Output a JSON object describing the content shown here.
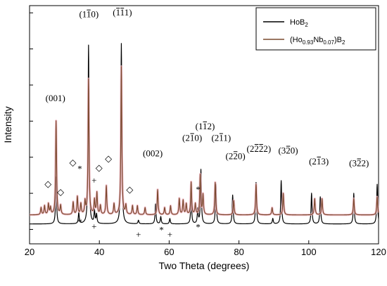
{
  "chart_data": {
    "type": "line",
    "xlabel": "Two Theta (degrees)",
    "ylabel": "Intensity",
    "xlim": [
      20,
      120
    ],
    "xticks": [
      "20",
      "40",
      "60",
      "80",
      "100",
      "120"
    ],
    "grid": false,
    "legend_position": "top-right",
    "series": [
      {
        "name": "HoB2",
        "legend_main": "HoB",
        "legend_sub": "2",
        "color": "#000000",
        "baseline": 0.03,
        "peaks": [
          [
            27.6,
            0.26
          ],
          [
            34.1,
            0.06
          ],
          [
            36.9,
            0.99
          ],
          [
            38.6,
            0.07
          ],
          [
            39.2,
            0.05
          ],
          [
            46.3,
            1.0
          ],
          [
            51.2,
            0.02
          ],
          [
            56.1,
            0.11
          ],
          [
            57.6,
            0.04
          ],
          [
            60.2,
            0.03
          ],
          [
            66.3,
            0.16
          ],
          [
            68.2,
            0.08
          ],
          [
            69.1,
            0.3
          ],
          [
            73.4,
            0.22
          ],
          [
            78.2,
            0.16
          ],
          [
            84.9,
            0.23
          ],
          [
            89.7,
            0.03
          ],
          [
            92.1,
            0.24
          ],
          [
            100.8,
            0.17
          ],
          [
            103.3,
            0.15
          ],
          [
            112.9,
            0.17
          ],
          [
            119.6,
            0.22
          ]
        ]
      },
      {
        "name": "(Ho0.93Nb0.07)B2",
        "legend_parts": [
          [
            "(Ho",
            false
          ],
          [
            "0.93",
            true
          ],
          [
            "Nb",
            false
          ],
          [
            "0.07",
            true
          ],
          [
            ")B",
            false
          ],
          [
            "2",
            true
          ]
        ],
        "color": "#7a4a2e",
        "baseline": 0.08,
        "peaks": [
          [
            23.3,
            0.04
          ],
          [
            24.3,
            0.05
          ],
          [
            25.4,
            0.06
          ],
          [
            26.0,
            0.04
          ],
          [
            27.6,
            0.52
          ],
          [
            28.9,
            0.05
          ],
          [
            32.5,
            0.07
          ],
          [
            33.7,
            0.1
          ],
          [
            34.7,
            0.06
          ],
          [
            35.9,
            0.07
          ],
          [
            36.9,
            0.75
          ],
          [
            38.6,
            0.08
          ],
          [
            39.3,
            0.12
          ],
          [
            40.3,
            0.05
          ],
          [
            42.0,
            0.16
          ],
          [
            44.2,
            0.06
          ],
          [
            46.3,
            0.82
          ],
          [
            47.6,
            0.05
          ],
          [
            49.5,
            0.05
          ],
          [
            50.9,
            0.05
          ],
          [
            53.1,
            0.04
          ],
          [
            56.7,
            0.14
          ],
          [
            58.7,
            0.04
          ],
          [
            60.4,
            0.05
          ],
          [
            62.9,
            0.09
          ],
          [
            64.0,
            0.08
          ],
          [
            64.9,
            0.06
          ],
          [
            66.3,
            0.18
          ],
          [
            67.5,
            0.06
          ],
          [
            68.9,
            0.22
          ],
          [
            69.7,
            0.11
          ],
          [
            73.2,
            0.18
          ],
          [
            78.5,
            0.08
          ],
          [
            84.9,
            0.17
          ],
          [
            89.5,
            0.04
          ],
          [
            92.7,
            0.12
          ],
          [
            101.7,
            0.09
          ],
          [
            103.8,
            0.09
          ],
          [
            112.9,
            0.09
          ],
          [
            119.6,
            0.1
          ]
        ]
      }
    ],
    "annotations": [
      {
        "label": "(001)",
        "parts": [
          [
            "(001)",
            false
          ]
        ],
        "x": 27.4,
        "y": 0.71
      },
      {
        "label": "(1-10)",
        "parts": [
          [
            "(1",
            false
          ],
          [
            "1",
            true
          ],
          [
            "0)",
            false
          ]
        ],
        "x": 37.0,
        "y": 1.175
      },
      {
        "label": "(1-11)",
        "parts": [
          [
            "(",
            false
          ],
          [
            "1",
            true
          ],
          [
            "1",
            true
          ],
          [
            "1)",
            false
          ]
        ],
        "x": 46.6,
        "y": 1.185
      },
      {
        "label": "(002)",
        "parts": [
          [
            "(002)",
            false
          ]
        ],
        "x": 55.3,
        "y": 0.405
      },
      {
        "label": "(2-10)",
        "parts": [
          [
            "(2",
            false
          ],
          [
            "1",
            true
          ],
          [
            "0)",
            false
          ]
        ],
        "x": 66.6,
        "y": 0.49
      },
      {
        "label": "(1-12)",
        "parts": [
          [
            "(1",
            false
          ],
          [
            "1",
            true
          ],
          [
            "2)",
            false
          ]
        ],
        "x": 70.3,
        "y": 0.555
      },
      {
        "label": "(2-11)",
        "parts": [
          [
            "(2",
            false
          ],
          [
            "1",
            true
          ],
          [
            "1)",
            false
          ]
        ],
        "x": 74.9,
        "y": 0.49
      },
      {
        "label": "(2-20)",
        "parts": [
          [
            "(2",
            false
          ],
          [
            "2",
            true
          ],
          [
            "0)",
            false
          ]
        ],
        "x": 79.0,
        "y": 0.39
      },
      {
        "label": "(2-2-2)",
        "parts": [
          [
            "(2",
            false
          ],
          [
            "2",
            true
          ],
          [
            "2",
            true
          ],
          [
            "2)",
            false
          ]
        ],
        "x": 85.7,
        "y": 0.43
      },
      {
        "label": "(3-20)",
        "parts": [
          [
            "(3",
            false
          ],
          [
            "2",
            true
          ],
          [
            "0)",
            false
          ]
        ],
        "x": 94.1,
        "y": 0.42
      },
      {
        "label": "(2-13)",
        "parts": [
          [
            "(2",
            false
          ],
          [
            "1",
            true
          ],
          [
            "3)",
            false
          ]
        ],
        "x": 102.9,
        "y": 0.36
      },
      {
        "label": "(3-22)",
        "parts": [
          [
            "(3",
            false
          ],
          [
            "2",
            true
          ],
          [
            "2)",
            false
          ]
        ],
        "x": 114.4,
        "y": 0.35
      }
    ],
    "markers": [
      {
        "symbol": "◇",
        "x": 25.3,
        "y": 0.235
      },
      {
        "symbol": "◇",
        "x": 28.9,
        "y": 0.19
      },
      {
        "symbol": "◇",
        "x": 32.4,
        "y": 0.355
      },
      {
        "symbol": "*",
        "x": 34.4,
        "y": 0.32
      },
      {
        "symbol": "+",
        "x": 38.5,
        "y": 0.255
      },
      {
        "symbol": "◇",
        "x": 39.9,
        "y": 0.325
      },
      {
        "symbol": "◇",
        "x": 42.6,
        "y": 0.375
      },
      {
        "symbol": "◇",
        "x": 48.7,
        "y": 0.205
      },
      {
        "symbol": "*",
        "x": 68.3,
        "y": 0.205
      },
      {
        "symbol": "*",
        "x": 34.4,
        "y": 0.025
      },
      {
        "symbol": "+",
        "x": 38.5,
        "y": 0.0
      },
      {
        "symbol": "+",
        "x": 51.2,
        "y": -0.045
      },
      {
        "symbol": "*",
        "x": 57.8,
        "y": -0.02
      },
      {
        "symbol": "+",
        "x": 60.2,
        "y": -0.045
      },
      {
        "symbol": "*",
        "x": 68.3,
        "y": -0.005
      }
    ]
  }
}
